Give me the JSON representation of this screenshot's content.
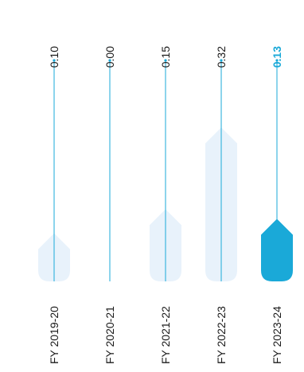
{
  "chart_data": {
    "type": "bar",
    "title": "",
    "xlabel": "",
    "ylabel": "",
    "categories": [
      "FY 2019-20",
      "FY 2020-21",
      "FY 2021-22",
      "FY 2022-23",
      "FY 2023-24"
    ],
    "values": [
      0.1,
      0.0,
      0.15,
      0.32,
      0.13
    ],
    "value_labels": [
      "0.10",
      "0.00",
      "0.15",
      "0.32",
      "0.13"
    ],
    "highlight_index": 4,
    "ylim": [
      0,
      0.4
    ],
    "grid": false,
    "legend": "none",
    "colors": {
      "bar": "#e8f2fb",
      "highlight_bar": "#1aa9d8",
      "line": "#1aa9d8",
      "text": "#1a1a1a",
      "highlight_text": "#1aa9d8"
    }
  }
}
